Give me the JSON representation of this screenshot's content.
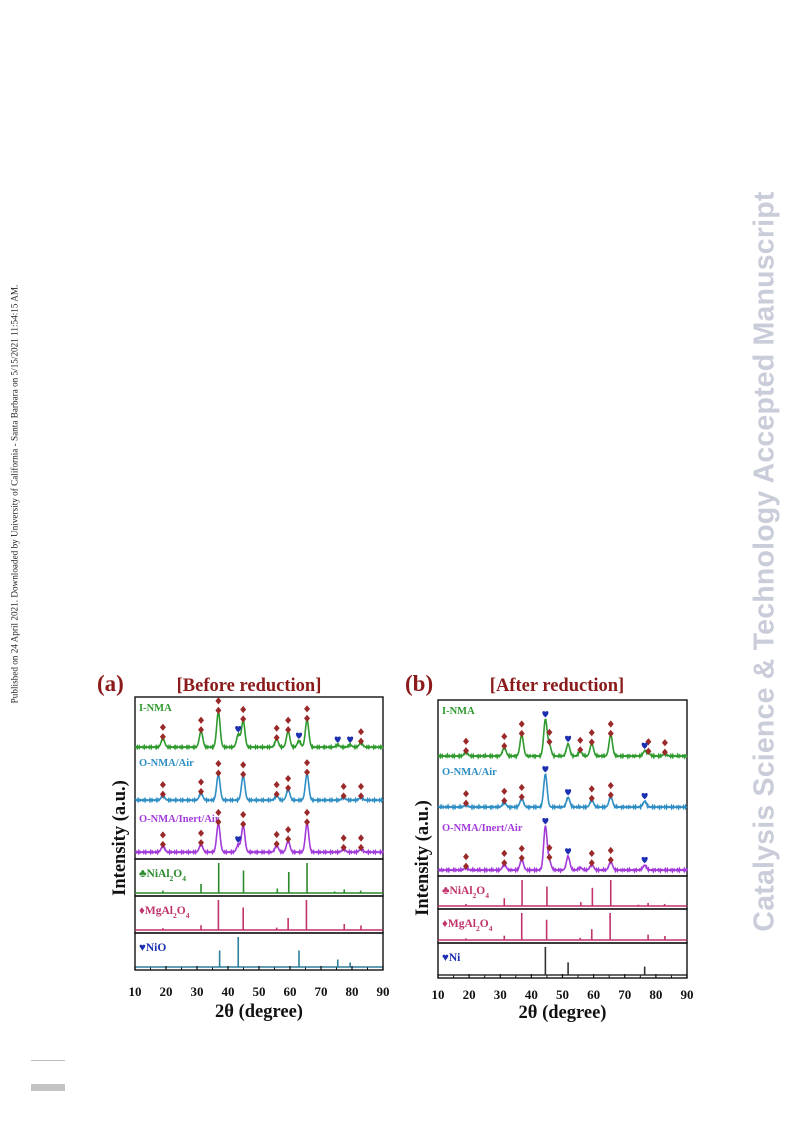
{
  "side_note": "Published on 24 April 2021. Downloaded by University of California - Santa Barbara on 5/15/2021 11:54:15 AM.",
  "watermark": "Catalysis Science & Technology Accepted Manuscript",
  "colors": {
    "I-NMA": "#2e9a2e",
    "O-NMA/Air": "#2f8ec4",
    "O-NMA/Inert/Air": "#a33bd9",
    "NiAl2O4": "#2b8a2b",
    "MgAl2O4": "#c0336b",
    "NiO": "#2d7f9a",
    "Ni": "#333333",
    "marker_spinel": "#9a2a2a",
    "marker_ni": "#1c2fb0",
    "title": "#8b1a1a"
  },
  "chart_data": [
    {
      "type": "line",
      "panel_label": "(a)",
      "title": "[Before reduction]",
      "xlabel": "2θ (degree)",
      "ylabel": "Intensity (a.u.)",
      "xlim": [
        10,
        90
      ],
      "xticks": [
        "10",
        "20",
        "30",
        "40",
        "50",
        "60",
        "70",
        "80",
        "90"
      ],
      "grid": false,
      "peak_width": 0.55,
      "series": [
        {
          "name": "I-NMA",
          "color": "#2e9a2e",
          "peaks": [
            [
              19,
              0.2
            ],
            [
              31.3,
              0.36
            ],
            [
              36.9,
              0.8
            ],
            [
              43.3,
              0.28
            ],
            [
              44.9,
              0.6
            ],
            [
              55.7,
              0.18
            ],
            [
              59.4,
              0.36
            ],
            [
              62.9,
              0.14
            ],
            [
              65.5,
              0.62
            ],
            [
              75.4,
              0.05
            ],
            [
              79.4,
              0.05
            ],
            [
              82.9,
              0.1
            ]
          ],
          "spinel_markers": [
            19,
            31.3,
            36.9,
            44.9,
            55.7,
            59.4,
            65.5,
            82.9
          ],
          "nio_markers": [
            43.3,
            62.9,
            75.4,
            79.4
          ]
        },
        {
          "name": "O-NMA/Air",
          "color": "#2f8ec4",
          "peaks": [
            [
              19,
              0.1
            ],
            [
              31.3,
              0.16
            ],
            [
              36.9,
              0.58
            ],
            [
              44.9,
              0.55
            ],
            [
              55.7,
              0.1
            ],
            [
              59.4,
              0.24
            ],
            [
              65.5,
              0.6
            ],
            [
              77.3,
              0.06
            ],
            [
              82.9,
              0.06
            ]
          ],
          "spinel_markers": [
            19,
            31.3,
            36.9,
            44.9,
            55.7,
            59.4,
            65.5,
            77.3,
            82.9
          ],
          "nio_markers": []
        },
        {
          "name": "O-NMA/Inert/Air",
          "color": "#a33bd9",
          "peaks": [
            [
              19,
              0.14
            ],
            [
              31.3,
              0.18
            ],
            [
              36.9,
              0.65
            ],
            [
              43.3,
              0.16
            ],
            [
              44.9,
              0.6
            ],
            [
              55.7,
              0.15
            ],
            [
              59.4,
              0.26
            ],
            [
              65.5,
              0.65
            ],
            [
              77.3,
              0.07
            ],
            [
              82.9,
              0.07
            ]
          ],
          "spinel_markers": [
            19,
            31.3,
            36.9,
            44.9,
            55.7,
            59.4,
            65.5,
            77.3,
            82.9
          ],
          "nio_markers": [
            43.3
          ]
        }
      ],
      "references": [
        {
          "name": "NiAl2O4",
          "label_prefix": "♣NiAl",
          "marker": "club",
          "color": "#2b8a2b",
          "sticks": [
            [
              19,
              0.08
            ],
            [
              31.3,
              0.3
            ],
            [
              37,
              1.0
            ],
            [
              45,
              0.75
            ],
            [
              55.9,
              0.15
            ],
            [
              59.6,
              0.7
            ],
            [
              65.5,
              1.0
            ],
            [
              74.4,
              0.05
            ],
            [
              77.5,
              0.12
            ],
            [
              82.8,
              0.08
            ]
          ]
        },
        {
          "name": "MgAl2O4",
          "label_prefix": "♦MgAl",
          "marker": "diamond",
          "color": "#c0336b",
          "sticks": [
            [
              19,
              0.06
            ],
            [
              31.3,
              0.16
            ],
            [
              36.9,
              1.0
            ],
            [
              44.9,
              0.75
            ],
            [
              55.7,
              0.08
            ],
            [
              59.4,
              0.4
            ],
            [
              65.3,
              1.0
            ],
            [
              77.5,
              0.2
            ],
            [
              82.9,
              0.15
            ]
          ]
        },
        {
          "name": "NiO",
          "label": "♥NiO",
          "marker": "heart",
          "color": "#2d7f9a",
          "sticks": [
            [
              37.3,
              0.55
            ],
            [
              43.3,
              1.0
            ],
            [
              62.9,
              0.55
            ],
            [
              75.4,
              0.25
            ],
            [
              79.4,
              0.15
            ]
          ]
        }
      ]
    },
    {
      "type": "line",
      "panel_label": "(b)",
      "title": "[After reduction]",
      "xlabel": "2θ (degree)",
      "ylabel": "Intensity (a.u.)",
      "xlim": [
        10,
        90
      ],
      "xticks": [
        "10",
        "20",
        "30",
        "40",
        "50",
        "60",
        "70",
        "80",
        "90"
      ],
      "grid": false,
      "peak_width": 0.55,
      "series": [
        {
          "name": "I-NMA",
          "color": "#2e9a2e",
          "peaks": [
            [
              19,
              0.08
            ],
            [
              31.3,
              0.18
            ],
            [
              36.9,
              0.44
            ],
            [
              44.5,
              0.75
            ],
            [
              45.8,
              0.22
            ],
            [
              51.8,
              0.25
            ],
            [
              55.7,
              0.1
            ],
            [
              59.4,
              0.26
            ],
            [
              65.5,
              0.44
            ],
            [
              76.4,
              0.1
            ],
            [
              77.6,
              0.06
            ],
            [
              82.9,
              0.05
            ]
          ],
          "spinel_markers": [
            19,
            31.3,
            36.9,
            45.8,
            55.7,
            59.4,
            65.5,
            77.6,
            82.9
          ],
          "nio_markers": [
            44.5,
            51.8,
            76.4
          ]
        },
        {
          "name": "O-NMA/Air",
          "color": "#2f8ec4",
          "peaks": [
            [
              19,
              0.05
            ],
            [
              31.3,
              0.1
            ],
            [
              36.9,
              0.18
            ],
            [
              44.5,
              0.68
            ],
            [
              51.8,
              0.2
            ],
            [
              59.4,
              0.15
            ],
            [
              65.5,
              0.22
            ],
            [
              76.4,
              0.12
            ]
          ],
          "spinel_markers": [
            19,
            31.3,
            36.9,
            59.4,
            65.5
          ],
          "nio_markers": [
            44.5,
            51.8,
            76.4
          ]
        },
        {
          "name": "O-NMA/Inert/Air",
          "color": "#a33bd9",
          "peaks": [
            [
              19,
              0.05
            ],
            [
              31.3,
              0.12
            ],
            [
              36.9,
              0.22
            ],
            [
              44.5,
              0.9
            ],
            [
              45.8,
              0.18
            ],
            [
              51.8,
              0.28
            ],
            [
              55.7,
              0.05
            ],
            [
              59.4,
              0.12
            ],
            [
              65.5,
              0.18
            ],
            [
              76.4,
              0.1
            ]
          ],
          "spinel_markers": [
            19,
            31.3,
            36.9,
            45.8,
            59.4,
            65.5
          ],
          "nio_markers": [
            44.5,
            51.8,
            76.4
          ]
        }
      ],
      "references": [
        {
          "name": "NiAl2O4",
          "label_prefix": "♣NiAl",
          "marker": "club",
          "color": "#c0336b",
          "sticks": [
            [
              19,
              0.08
            ],
            [
              31.3,
              0.3
            ],
            [
              37,
              1.0
            ],
            [
              45,
              0.75
            ],
            [
              55.9,
              0.15
            ],
            [
              59.6,
              0.7
            ],
            [
              65.5,
              1.0
            ],
            [
              74.4,
              0.05
            ],
            [
              77.5,
              0.12
            ],
            [
              82.8,
              0.08
            ]
          ]
        },
        {
          "name": "MgAl2O4",
          "label_prefix": "♦MgAl",
          "marker": "diamond",
          "color": "#c0336b",
          "sticks": [
            [
              19,
              0.06
            ],
            [
              31.3,
              0.16
            ],
            [
              36.9,
              1.0
            ],
            [
              44.9,
              0.75
            ],
            [
              55.7,
              0.08
            ],
            [
              59.4,
              0.4
            ],
            [
              65.3,
              1.0
            ],
            [
              77.5,
              0.2
            ],
            [
              82.9,
              0.15
            ]
          ]
        },
        {
          "name": "Ni",
          "label": "♥Ni",
          "marker": "heart",
          "color": "#333333",
          "sticks": [
            [
              44.5,
              1.0
            ],
            [
              51.8,
              0.45
            ],
            [
              76.4,
              0.3
            ]
          ]
        }
      ]
    }
  ]
}
